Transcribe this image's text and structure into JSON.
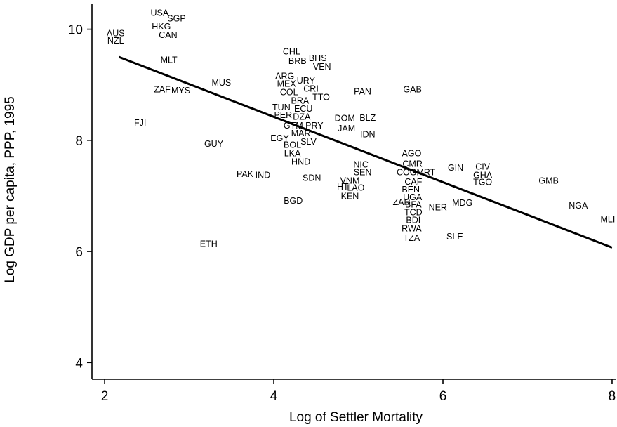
{
  "chart_data": {
    "type": "scatter",
    "xlabel": "Log of Settler Mortality",
    "ylabel": "Log GDP per capita, PPP, 1995",
    "xlim": [
      1.85,
      8.05
    ],
    "ylim": [
      3.7,
      10.45
    ],
    "xticks": [
      2,
      4,
      6,
      8
    ],
    "yticks": [
      4,
      6,
      8,
      10
    ],
    "grid": false,
    "fit_line": {
      "x": [
        2.17,
        8.0
      ],
      "y": [
        9.5,
        6.07
      ]
    },
    "points": [
      {
        "label": "USA",
        "x": 2.65,
        "y": 10.3
      },
      {
        "label": "SGP",
        "x": 2.85,
        "y": 10.2
      },
      {
        "label": "HKG",
        "x": 2.67,
        "y": 10.05
      },
      {
        "label": "CAN",
        "x": 2.75,
        "y": 9.9
      },
      {
        "label": "AUS",
        "x": 2.13,
        "y": 9.93
      },
      {
        "label": "NZL",
        "x": 2.13,
        "y": 9.8
      },
      {
        "label": "MLT",
        "x": 2.76,
        "y": 9.45
      },
      {
        "label": "MUS",
        "x": 3.38,
        "y": 9.04
      },
      {
        "label": "ZAF",
        "x": 2.68,
        "y": 8.92
      },
      {
        "label": "MYS",
        "x": 2.9,
        "y": 8.9
      },
      {
        "label": "FJI",
        "x": 2.42,
        "y": 8.32
      },
      {
        "label": "GUY",
        "x": 3.29,
        "y": 7.94
      },
      {
        "label": "PAK",
        "x": 3.66,
        "y": 7.4
      },
      {
        "label": "IND",
        "x": 3.87,
        "y": 7.38
      },
      {
        "label": "ETH",
        "x": 3.23,
        "y": 6.14
      },
      {
        "label": "BGD",
        "x": 4.23,
        "y": 6.92
      },
      {
        "label": "CHL",
        "x": 4.21,
        "y": 9.6
      },
      {
        "label": "BRB",
        "x": 4.28,
        "y": 9.43
      },
      {
        "label": "BHS",
        "x": 4.52,
        "y": 9.48
      },
      {
        "label": "VEN",
        "x": 4.57,
        "y": 9.33
      },
      {
        "label": "ARG",
        "x": 4.13,
        "y": 9.16
      },
      {
        "label": "URY",
        "x": 4.38,
        "y": 9.08
      },
      {
        "label": "MEX",
        "x": 4.15,
        "y": 9.02
      },
      {
        "label": "CRI",
        "x": 4.44,
        "y": 8.93
      },
      {
        "label": "COL",
        "x": 4.18,
        "y": 8.87
      },
      {
        "label": "TTO",
        "x": 4.56,
        "y": 8.78
      },
      {
        "label": "BRA",
        "x": 4.31,
        "y": 8.72
      },
      {
        "label": "TUN",
        "x": 4.09,
        "y": 8.6
      },
      {
        "label": "ECU",
        "x": 4.35,
        "y": 8.57
      },
      {
        "label": "PER",
        "x": 4.11,
        "y": 8.46
      },
      {
        "label": "DZA",
        "x": 4.33,
        "y": 8.43
      },
      {
        "label": "GTM",
        "x": 4.23,
        "y": 8.27
      },
      {
        "label": "PRY",
        "x": 4.48,
        "y": 8.27
      },
      {
        "label": "MAR",
        "x": 4.32,
        "y": 8.13
      },
      {
        "label": "EGY",
        "x": 4.07,
        "y": 8.04
      },
      {
        "label": "SLV",
        "x": 4.41,
        "y": 7.98
      },
      {
        "label": "BOL",
        "x": 4.22,
        "y": 7.92
      },
      {
        "label": "LKA",
        "x": 4.22,
        "y": 7.77
      },
      {
        "label": "HND",
        "x": 4.32,
        "y": 7.62
      },
      {
        "label": "SDN",
        "x": 4.45,
        "y": 7.33
      },
      {
        "label": "PAN",
        "x": 5.05,
        "y": 8.88
      },
      {
        "label": "GAB",
        "x": 5.64,
        "y": 8.92
      },
      {
        "label": "DOM",
        "x": 4.84,
        "y": 8.4
      },
      {
        "label": "BLZ",
        "x": 5.11,
        "y": 8.41
      },
      {
        "label": "JAM",
        "x": 4.86,
        "y": 8.22
      },
      {
        "label": "IDN",
        "x": 5.11,
        "y": 8.11
      },
      {
        "label": "AGO",
        "x": 5.63,
        "y": 7.77
      },
      {
        "label": "NIC",
        "x": 5.03,
        "y": 7.57
      },
      {
        "label": "CMR",
        "x": 5.64,
        "y": 7.58
      },
      {
        "label": "SEN",
        "x": 5.05,
        "y": 7.43
      },
      {
        "label": "COG",
        "x": 5.57,
        "y": 7.43
      },
      {
        "label": "MRT",
        "x": 5.8,
        "y": 7.43
      },
      {
        "label": "VNM",
        "x": 4.9,
        "y": 7.28
      },
      {
        "label": "CAF",
        "x": 5.65,
        "y": 7.26
      },
      {
        "label": "HTI",
        "x": 4.83,
        "y": 7.17
      },
      {
        "label": "LAO",
        "x": 4.97,
        "y": 7.15
      },
      {
        "label": "BEN",
        "x": 5.62,
        "y": 7.12
      },
      {
        "label": "KEN",
        "x": 4.9,
        "y": 7.0
      },
      {
        "label": "UGA",
        "x": 5.64,
        "y": 6.98
      },
      {
        "label": "ZAR",
        "x": 5.51,
        "y": 6.89
      },
      {
        "label": "BFA",
        "x": 5.65,
        "y": 6.85
      },
      {
        "label": "TCD",
        "x": 5.65,
        "y": 6.71
      },
      {
        "label": "BDI",
        "x": 5.65,
        "y": 6.57
      },
      {
        "label": "RWA",
        "x": 5.63,
        "y": 6.42
      },
      {
        "label": "TZA",
        "x": 5.63,
        "y": 6.25
      },
      {
        "label": "NER",
        "x": 5.94,
        "y": 6.8
      },
      {
        "label": "MDG",
        "x": 6.23,
        "y": 6.88
      },
      {
        "label": "SLE",
        "x": 6.14,
        "y": 6.27
      },
      {
        "label": "GIN",
        "x": 6.15,
        "y": 7.51
      },
      {
        "label": "CIV",
        "x": 6.47,
        "y": 7.53
      },
      {
        "label": "GHA",
        "x": 6.47,
        "y": 7.38
      },
      {
        "label": "TGO",
        "x": 6.47,
        "y": 7.25
      },
      {
        "label": "GMB",
        "x": 7.25,
        "y": 7.28
      },
      {
        "label": "NGA",
        "x": 7.6,
        "y": 6.83
      },
      {
        "label": "MLI",
        "x": 7.95,
        "y": 6.58
      }
    ]
  }
}
